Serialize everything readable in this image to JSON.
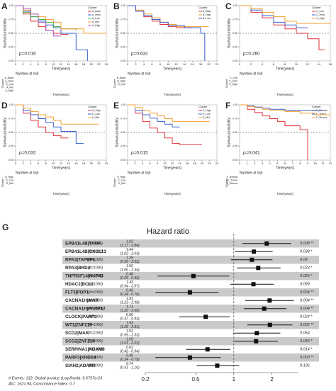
{
  "chart_data": [
    {
      "type": "km",
      "panel": "A",
      "ylabel": "Survival probability",
      "xlabel": "Time(years)",
      "pvalue": "p=0.016",
      "legend_title": "Cluster",
      "risk_title": "Number at risk",
      "risk_ylabel": "Cluster",
      "xlim": [
        0,
        24
      ],
      "xticks": [
        0,
        2,
        4,
        6,
        8,
        10,
        12,
        14,
        16,
        18,
        20,
        22,
        24
      ],
      "ylim": [
        0,
        1
      ],
      "yticks": [
        {
          "value": 0,
          "label": "0.00"
        },
        {
          "value": 0.25,
          "label": "0.25"
        },
        {
          "value": 0.5,
          "label": "0.50"
        },
        {
          "value": 0.75,
          "label": "0.75"
        },
        {
          "value": 1,
          "label": "1.00"
        }
      ],
      "series": [
        {
          "name": "A_Base",
          "color": "#e0303a",
          "x": [
            0,
            2,
            4,
            6,
            8,
            10,
            12,
            14
          ],
          "values": [
            1,
            0.85,
            0.72,
            0.62,
            0.55,
            0.5,
            0.48,
            0.48
          ]
        },
        {
          "name": "A_Herd",
          "color": "#3a5fcd",
          "x": [
            0,
            2,
            4,
            6,
            8,
            10,
            12,
            16,
            19
          ],
          "values": [
            1,
            0.9,
            0.8,
            0.72,
            0.65,
            0.6,
            0.5,
            0.2,
            0
          ]
        },
        {
          "name": "A_Low",
          "color": "#3cb043",
          "x": [
            0,
            2,
            4,
            6,
            8,
            10,
            12,
            16
          ],
          "values": [
            1,
            0.88,
            0.8,
            0.75,
            0.7,
            0.62,
            0.58,
            0.55
          ]
        },
        {
          "name": "A_Mid",
          "color": "#f0a030",
          "x": [
            0,
            2,
            4,
            6,
            8,
            10,
            12,
            18,
            24
          ],
          "values": [
            1,
            0.92,
            0.85,
            0.8,
            0.75,
            0.7,
            0.58,
            0.5,
            0.5
          ]
        },
        {
          "name": "A_High",
          "color": "#b05ec8",
          "x": [
            0,
            2,
            4,
            6,
            8,
            10,
            12
          ],
          "values": [
            1,
            0.95,
            0.85,
            0.7,
            0.55,
            0.45,
            0.45
          ]
        }
      ]
    },
    {
      "type": "km",
      "panel": "B",
      "ylabel": "Survival probability",
      "xlabel": "Time(years)",
      "pvalue": "p=0.632",
      "legend_title": "Cluster",
      "risk_title": "Number at risk",
      "risk_ylabel": "Cluster",
      "xlim": [
        0,
        22
      ],
      "xticks": [
        0,
        2,
        4,
        6,
        8,
        10,
        12,
        14,
        16,
        18,
        20,
        22
      ],
      "ylim": [
        0,
        1
      ],
      "yticks": [
        {
          "value": 0,
          "label": "0.00"
        },
        {
          "value": 0.25,
          "label": "0.25"
        },
        {
          "value": 0.5,
          "label": "0.50"
        },
        {
          "value": 0.75,
          "label": "0.75"
        },
        {
          "value": 1,
          "label": "1.00"
        }
      ],
      "series": [
        {
          "name": "B_Base",
          "color": "#e0303a",
          "x": [
            0,
            2,
            4,
            6,
            8,
            10,
            12,
            16
          ],
          "values": [
            1,
            0.9,
            0.8,
            0.72,
            0.66,
            0.62,
            0.6,
            0.6
          ]
        },
        {
          "name": "B_High",
          "color": "#f0a030",
          "x": [
            0,
            2,
            4,
            6,
            8,
            10,
            12,
            20
          ],
          "values": [
            1,
            0.92,
            0.85,
            0.78,
            0.7,
            0.66,
            0.62,
            0.62
          ]
        },
        {
          "name": "B_Low",
          "color": "#3a5fcd",
          "x": [
            0,
            2,
            4,
            6,
            8,
            10,
            14,
            18,
            19
          ],
          "values": [
            1,
            0.9,
            0.82,
            0.75,
            0.7,
            0.64,
            0.6,
            0.5,
            0
          ]
        }
      ]
    },
    {
      "type": "km",
      "panel": "C",
      "ylabel": "Survival probability",
      "xlabel": "Time(years)",
      "pvalue": "p=0.260",
      "legend_title": "Cluster",
      "risk_title": "Number at risk",
      "risk_ylabel": "Cluster",
      "xlim": [
        0,
        16
      ],
      "xticks": [
        0,
        2,
        4,
        6,
        8,
        10,
        12,
        14,
        16
      ],
      "ylim": [
        0,
        1
      ],
      "yticks": [
        {
          "value": 0,
          "label": "0.00"
        },
        {
          "value": 0.25,
          "label": "0.25"
        },
        {
          "value": 0.5,
          "label": "0.50"
        },
        {
          "value": 0.75,
          "label": "0.75"
        },
        {
          "value": 1,
          "label": "1.00"
        }
      ],
      "series": [
        {
          "name": "C_Low",
          "color": "#e0303a",
          "x": [
            0,
            2,
            4,
            6,
            8,
            10,
            12,
            14,
            15
          ],
          "values": [
            1,
            0.88,
            0.78,
            0.65,
            0.58,
            0.5,
            0.4,
            0.2,
            0.2
          ]
        },
        {
          "name": "C_Herd",
          "color": "#3a5fcd",
          "x": [
            0,
            2,
            4,
            6,
            8,
            10,
            12
          ],
          "values": [
            1,
            0.92,
            0.82,
            0.7,
            0.65,
            0.6,
            0.6
          ]
        },
        {
          "name": "C_High",
          "color": "#f0a030",
          "x": [
            0,
            2,
            4,
            6,
            8,
            10,
            16
          ],
          "values": [
            1,
            0.95,
            0.88,
            0.8,
            0.72,
            0.68,
            0.68
          ]
        }
      ]
    },
    {
      "type": "km",
      "panel": "D",
      "ylabel": "Survival probability",
      "xlabel": "Time(years)",
      "pvalue": "p=0.032",
      "legend_title": "Cluster",
      "risk_title": "Number at risk",
      "risk_ylabel": "Cluster",
      "xlim": [
        0,
        24
      ],
      "xticks": [
        0,
        2,
        4,
        6,
        8,
        10,
        12,
        14,
        16,
        18,
        20,
        22,
        24
      ],
      "ylim": [
        0,
        1
      ],
      "yticks": [
        {
          "value": 0,
          "label": "0.00"
        },
        {
          "value": 0.25,
          "label": "0.25"
        },
        {
          "value": 0.5,
          "label": "0.50"
        },
        {
          "value": 0.75,
          "label": "0.75"
        },
        {
          "value": 1,
          "label": "1.00"
        }
      ],
      "series": [
        {
          "name": "D_High",
          "color": "#e0303a",
          "x": [
            0,
            2,
            4,
            6,
            8,
            10,
            12,
            14
          ],
          "values": [
            1,
            0.85,
            0.72,
            0.6,
            0.5,
            0.44,
            0.4,
            0.4
          ]
        },
        {
          "name": "D_Low",
          "color": "#3a5fcd",
          "x": [
            0,
            2,
            4,
            6,
            8,
            10,
            12,
            16,
            18
          ],
          "values": [
            1,
            0.9,
            0.82,
            0.75,
            0.68,
            0.6,
            0.52,
            0.3,
            0.3
          ]
        },
        {
          "name": "D_Mid",
          "color": "#f0a030",
          "x": [
            0,
            2,
            4,
            6,
            8,
            10,
            12,
            22
          ],
          "values": [
            1,
            0.94,
            0.88,
            0.82,
            0.78,
            0.72,
            0.65,
            0.65
          ]
        }
      ]
    },
    {
      "type": "km",
      "panel": "E",
      "ylabel": "Survival probability",
      "xlabel": "Time(years)",
      "pvalue": "p=0.015",
      "legend_title": "Cluster",
      "risk_title": "Number at risk",
      "risk_ylabel": "Cluster",
      "xlim": [
        0,
        24
      ],
      "xticks": [
        0,
        2,
        4,
        6,
        8,
        10,
        12,
        14,
        16,
        18,
        20,
        22,
        24
      ],
      "ylim": [
        0,
        1
      ],
      "yticks": [
        {
          "value": 0,
          "label": "0.00"
        },
        {
          "value": 0.25,
          "label": "0.25"
        },
        {
          "value": 0.5,
          "label": "0.50"
        },
        {
          "value": 0.75,
          "label": "0.75"
        },
        {
          "value": 1,
          "label": "1.00"
        }
      ],
      "series": [
        {
          "name": "E_High",
          "color": "#e0303a",
          "x": [
            0,
            2,
            4,
            6,
            8,
            10,
            12,
            14,
            20
          ],
          "values": [
            1,
            0.85,
            0.7,
            0.58,
            0.5,
            0.4,
            0.3,
            0.28,
            0.28
          ]
        },
        {
          "name": "E_Low",
          "color": "#3a5fcd",
          "x": [
            0,
            2,
            4,
            6,
            8,
            10,
            12,
            14
          ],
          "values": [
            1,
            0.9,
            0.82,
            0.76,
            0.7,
            0.65,
            0.6,
            0.6
          ]
        },
        {
          "name": "E_Mid",
          "color": "#f0a030",
          "x": [
            0,
            2,
            4,
            6,
            8,
            10,
            12,
            22
          ],
          "values": [
            1,
            0.95,
            0.9,
            0.85,
            0.8,
            0.75,
            0.7,
            0.7
          ]
        }
      ]
    },
    {
      "type": "km",
      "panel": "F",
      "ylabel": "Survival probability",
      "xlabel": "Time(years)",
      "pvalue": "p=0.041",
      "legend_title": "Cluster",
      "risk_title": "Number at risk",
      "risk_ylabel": "Cluster",
      "xlim": [
        0,
        12
      ],
      "xticks": [
        0,
        1,
        2,
        3,
        4,
        5,
        6,
        7,
        8,
        9,
        10,
        11,
        12
      ],
      "ylim": [
        0,
        1
      ],
      "yticks": [
        {
          "value": 0,
          "label": "0.00"
        },
        {
          "value": 0.25,
          "label": "0.25"
        },
        {
          "value": 0.5,
          "label": "0.50"
        },
        {
          "value": 0.75,
          "label": "0.75"
        },
        {
          "value": 1,
          "label": "1.00"
        }
      ],
      "series": [
        {
          "name": "F_Normal",
          "color": "#e0303a",
          "x": [
            0,
            1,
            2,
            3,
            4,
            5,
            6,
            8,
            9
          ],
          "values": [
            1,
            0.92,
            0.86,
            0.8,
            0.75,
            0.7,
            0.62,
            0.55,
            0
          ]
        },
        {
          "name": "F_Tumor",
          "color": "#3a5fcd",
          "x": [
            0,
            1,
            2,
            3,
            4,
            6,
            8,
            11
          ],
          "values": [
            1,
            0.98,
            0.96,
            0.94,
            0.92,
            0.9,
            0.9,
            0.9
          ]
        },
        {
          "name": "F_Stroma",
          "color": "#f0a030",
          "x": [
            0,
            1,
            2,
            3,
            4,
            6,
            8,
            10,
            12
          ],
          "values": [
            1,
            0.97,
            0.95,
            0.92,
            0.9,
            0.88,
            0.85,
            0.82,
            0.82
          ]
        }
      ]
    },
    {
      "type": "forest",
      "panel": "G",
      "title": "Hazard ratio",
      "xlim": [
        0.2,
        3.2
      ],
      "xticks": [
        0.2,
        0.5,
        1,
        2
      ],
      "log_scale": true,
      "reference": 1,
      "footer": [
        "# Events: 132; Global p-value (Log-Rank): 9.6757e-23",
        "AIC: 1621.94; Concordance Index: 0.7"
      ],
      "rows": [
        {
          "name": "EPB41L4B|TANK",
          "n": "(N=1090)",
          "hr": 1.82,
          "hr_label": "1.82",
          "ci": [
            1.17,
            2.84
          ],
          "ci_label": "(1.17 - 2.84)",
          "p": 0.008,
          "sig": "**"
        },
        {
          "name": "EPB41L4B|CXCL13",
          "n": "(N=1090)",
          "hr": 1.44,
          "hr_label": "1.44",
          "ci": [
            1.02,
            2.03
          ],
          "ci_label": "(1.02 - 2.03)",
          "p": 0.038,
          "sig": "*"
        },
        {
          "name": "RPA3|TAPBPL",
          "n": "(N=1090)",
          "hr": 1.39,
          "hr_label": "1.39",
          "ci": [
            0.95,
            2.02
          ],
          "ci_label": "(0.95 - 2.02)",
          "p": 0.09,
          "sig": null
        },
        {
          "name": "RPA3|BRD4",
          "n": "(N=1090)",
          "hr": 1.56,
          "hr_label": "1.56",
          "ci": [
            1.06,
            2.34
          ],
          "ci_label": "(1.06 - 2.34)",
          "p": 0.023,
          "sig": "*"
        },
        {
          "name": "TNFRSF14|NUP43",
          "n": "(N=1090)",
          "hr": 0.48,
          "hr_label": "0.48",
          "ci": [
            0.25,
            0.92
          ],
          "ci_label": "(0.25 - 0.92)",
          "p": 0.026,
          "sig": "*"
        },
        {
          "name": "HDAC2|BCL2",
          "n": "(N=1090)",
          "hr": 1.43,
          "hr_label": "1.43",
          "ci": [
            0.94,
            2.07
          ],
          "ci_label": "(0.94 - 2.07)",
          "p": 0.099,
          "sig": null
        },
        {
          "name": "FLT3|POP1",
          "n": "(N=1090)",
          "hr": 0.45,
          "hr_label": "0.45",
          "ci": [
            0.24,
            0.76
          ],
          "ci_label": "(0.24 - 0.76)",
          "p": 0.004,
          "sig": "**"
        },
        {
          "name": "CACNA1H|MAK",
          "n": "(N=1090)",
          "hr": 1.92,
          "hr_label": "1.92",
          "ci": [
            1.23,
            2.98
          ],
          "ci_label": "(1.23 - 2.98)",
          "p": 0.004,
          "sig": "**"
        },
        {
          "name": "CACNA1H|PARP12",
          "n": "(N=1090)",
          "hr": 1.74,
          "hr_label": "1.74",
          "ci": [
            1.2,
            2.6
          ],
          "ci_label": "(1.20 - 2.60)",
          "p": 0.004,
          "sig": "**"
        },
        {
          "name": "CLOCK|PARP3",
          "n": "(N=1090)",
          "hr": 0.6,
          "hr_label": "0.60",
          "ci": [
            0.37,
            0.93
          ],
          "ci_label": "(0.37 - 0.93)",
          "p": 0.024,
          "sig": "*"
        },
        {
          "name": "WT1|ZNF219",
          "n": "(N=1090)",
          "hr": 1.93,
          "hr_label": "1.93",
          "ci": [
            1.28,
            2.91
          ],
          "ci_label": "(1.28 - 2.91)",
          "p": 0.002,
          "sig": "**"
        },
        {
          "name": "SCG2|MAK",
          "n": "(N=1090)",
          "hr": 1.52,
          "hr_label": "1.52",
          "ci": [
            0.99,
            2.33
          ],
          "ci_label": "(0.99 - 2.33)",
          "p": 0.054,
          "sig": null
        },
        {
          "name": "SCG2|ZNF219",
          "n": "(N=1090)",
          "hr": 1.5,
          "hr_label": "1.50",
          "ci": [
            1.01,
            2.23
          ],
          "ci_label": "(1.01 - 2.23)",
          "p": 0.045,
          "sig": "*"
        },
        {
          "name": "SERPINA1|ADAM9",
          "n": "(N=1090)",
          "hr": 0.62,
          "hr_label": "0.62",
          "ci": [
            0.42,
            0.94
          ],
          "ci_label": "(0.42 - 0.94)",
          "p": 0.014,
          "sig": "*"
        },
        {
          "name": "PARP3|XRCC4",
          "n": "(N=1090)",
          "hr": 0.45,
          "hr_label": "0.45",
          "ci": [
            0.24,
            0.79
          ],
          "ci_label": "(0.24 - 0.79)",
          "p": 0.003,
          "sig": "**"
        },
        {
          "name": "SIAH2|ADAM9",
          "n": "(N=1090)",
          "hr": 0.74,
          "hr_label": "0.74",
          "ci": [
            0.51,
            1.1
          ],
          "ci_label": "(0.51 - 1.10)",
          "p": 0.135,
          "sig": null
        }
      ]
    }
  ]
}
